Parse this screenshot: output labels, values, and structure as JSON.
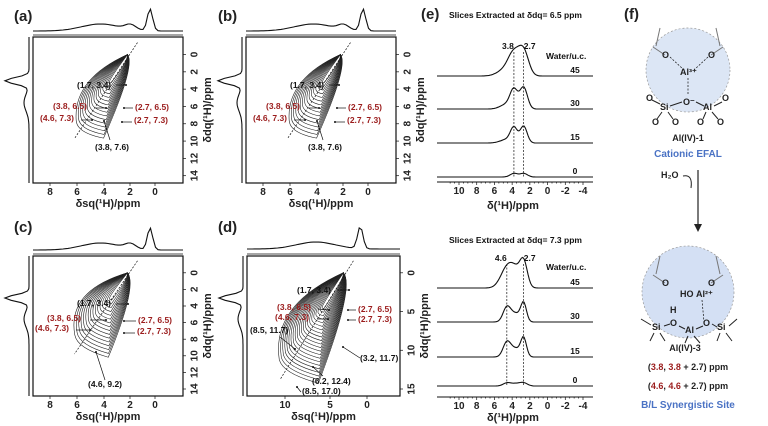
{
  "panels": {
    "a": {
      "label": "(a)",
      "xlabel": "δsq(¹H)/ppm",
      "ylabel": "δdq(¹H)/ppm",
      "xticks": [
        "8",
        "6",
        "4",
        "2",
        "0"
      ],
      "yticks": [
        "0",
        "2",
        "4",
        "6",
        "8",
        "10",
        "12",
        "14"
      ],
      "annotations_black": [
        "(1.7, 3.4)",
        "(3.8, 7.6)"
      ],
      "annotations_red": [
        "(3.8, 6.5)",
        "(4.6, 7.3)",
        "(2.7, 6.5)",
        "(2.7, 7.3)"
      ]
    },
    "b": {
      "label": "(b)",
      "xlabel": "δsq(¹H)/ppm",
      "ylabel": "δdq(¹H)/ppm",
      "xticks": [
        "8",
        "6",
        "4",
        "2",
        "0"
      ],
      "yticks": [
        "0",
        "2",
        "4",
        "6",
        "8",
        "10",
        "12",
        "14"
      ],
      "annotations_black": [
        "(1.7, 3.4)",
        "(3.8, 7.6)"
      ],
      "annotations_red": [
        "(3.8, 6.5)",
        "(4.6, 7.3)",
        "(2.7, 6.5)",
        "(2.7, 7.3)"
      ]
    },
    "c": {
      "label": "(c)",
      "xlabel": "δsq(¹H)/ppm",
      "ylabel": "δdq(¹H)/ppm",
      "xticks": [
        "8",
        "6",
        "4",
        "2",
        "0"
      ],
      "yticks": [
        "0",
        "2",
        "4",
        "6",
        "8",
        "10",
        "12",
        "14"
      ],
      "annotations_black": [
        "(1.7, 3.4)",
        "(4.6, 9.2)"
      ],
      "annotations_red": [
        "(3.8, 6.5)",
        "(4.6, 7.3)",
        "(2.7, 6.5)",
        "(2.7, 7.3)"
      ]
    },
    "d": {
      "label": "(d)",
      "xlabel": "δsq(¹H)/ppm",
      "ylabel": "δdq(¹H)/ppm",
      "xticks": [
        "10",
        "5",
        "0"
      ],
      "yticks": [
        "0",
        "5",
        "10",
        "15"
      ],
      "annotations_black": [
        "(1.7, 3.4)",
        "(8.5, 11.7)",
        "(3.2, 11.7)",
        "(6.2, 12.4)",
        "(8.5, 17.0)"
      ],
      "annotations_red": [
        "(3.8, 6.5)",
        "(4.6, 7.3)",
        "(2.7, 6.5)",
        "(2.7, 7.3)"
      ]
    },
    "e": {
      "label": "(e)",
      "xlabel": "δ(¹H)/ppm",
      "xticks": [
        "10",
        "8",
        "6",
        "4",
        "2",
        "0",
        "-2",
        "-4"
      ],
      "legend_title": "Water/u.c.",
      "top": {
        "title": "Slices Extracted at δdq= 6.5 ppm",
        "markers": [
          "3.8",
          "2.7"
        ],
        "marker_ppm": [
          3.8,
          2.7
        ],
        "traces": [
          {
            "water": "45",
            "peaks": [
              [
                3.8,
                0.85,
                0.9
              ],
              [
                2.7,
                1.0,
                0.8
              ],
              [
                4.8,
                0.25,
                1.2
              ]
            ]
          },
          {
            "water": "30",
            "peaks": [
              [
                3.8,
                0.75,
                0.6
              ],
              [
                2.7,
                0.9,
                0.6
              ],
              [
                4.6,
                0.2,
                1.0
              ]
            ]
          },
          {
            "water": "15",
            "peaks": [
              [
                3.8,
                0.6,
                0.55
              ],
              [
                2.7,
                0.7,
                0.55
              ],
              [
                4.6,
                0.15,
                1.0
              ]
            ]
          },
          {
            "water": "0",
            "peaks": [
              [
                3.8,
                0.15,
                0.6
              ],
              [
                2.7,
                0.15,
                0.6
              ]
            ]
          }
        ]
      },
      "bottom": {
        "title": "Slices Extracted at δdq= 7.3 ppm",
        "markers": [
          "4.6",
          "2.7"
        ],
        "marker_ppm": [
          4.6,
          2.7
        ],
        "traces": [
          {
            "water": "45",
            "peaks": [
              [
                4.6,
                0.8,
                1.0
              ],
              [
                2.7,
                1.0,
                0.6
              ],
              [
                3.6,
                0.6,
                0.9
              ]
            ]
          },
          {
            "water": "30",
            "peaks": [
              [
                4.6,
                0.6,
                0.6
              ],
              [
                2.7,
                0.75,
                0.45
              ],
              [
                3.6,
                0.35,
                0.8
              ]
            ]
          },
          {
            "water": "15",
            "peaks": [
              [
                4.6,
                0.6,
                0.6
              ],
              [
                2.7,
                0.75,
                0.45
              ],
              [
                3.6,
                0.35,
                0.8
              ]
            ]
          },
          {
            "water": "0",
            "peaks": [
              [
                4.6,
                0.12,
                0.6
              ],
              [
                2.7,
                0.12,
                0.6
              ],
              [
                3.6,
                0.1,
                0.8
              ]
            ]
          }
        ]
      }
    },
    "f": {
      "label": "(f)",
      "site1_name": "Al(IV)-1",
      "site1_type": "Cationic EFAL",
      "reagent": "H₂O",
      "site3_name": "Al(IV)-3",
      "line1_open": "(",
      "line1_a": "3.8",
      "line1_b": ", ",
      "line1_c": "3.8",
      "line1_d": " + ",
      "line1_e": "2.7",
      "line1_f": ") ppm",
      "line2_a": "4.6",
      "line2_c": "4.6",
      "line2_e": "2.7",
      "site3_type": "B/L Synergistic Site",
      "atoms": {
        "al": "Al",
        "al3": "Al³⁺",
        "al2": "Al²⁺",
        "si": "Si",
        "o": "O",
        "om": "O⁻",
        "h": "H",
        "ho": "HO"
      }
    }
  },
  "colors": {
    "red": "#9b1c1c",
    "blue": "#4a72c4",
    "bubble": "#dce6f5"
  }
}
